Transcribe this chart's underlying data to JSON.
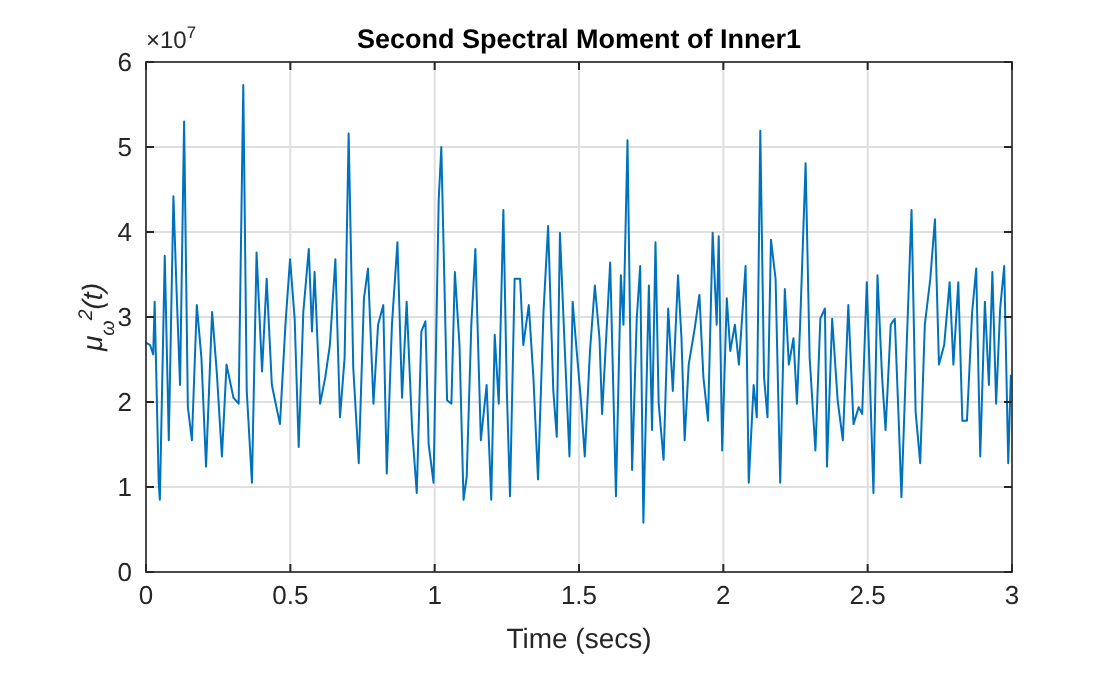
{
  "chart_data": {
    "type": "line",
    "title": "Second Spectral Moment of Inner1",
    "xlabel": "Time (secs)",
    "ylabel": "μ$_{ω}$$^{2}$(t)",
    "annotations": [
      "×10$^{7}$"
    ],
    "xlim": [
      0,
      3
    ],
    "xticks": [
      0,
      0.5,
      1,
      1.5,
      2,
      2.5,
      3
    ],
    "ylim": [
      0,
      6
    ],
    "yticks": [
      0,
      1,
      2,
      3,
      4,
      5,
      6
    ],
    "grid": true,
    "line_style": "solid",
    "series": [
      {
        "color": "#0072bd",
        "x": [
          0,
          0.014,
          0.025,
          0.03,
          0.044,
          0.048,
          0.065,
          0.079,
          0.095,
          0.106,
          0.118,
          0.132,
          0.145,
          0.159,
          0.176,
          0.192,
          0.208,
          0.229,
          0.245,
          0.263,
          0.279,
          0.303,
          0.321,
          0.337,
          0.349,
          0.367,
          0.383,
          0.402,
          0.418,
          0.436,
          0.464,
          0.483,
          0.499,
          0.515,
          0.529,
          0.545,
          0.564,
          0.575,
          0.584,
          0.603,
          0.621,
          0.637,
          0.656,
          0.672,
          0.688,
          0.702,
          0.718,
          0.737,
          0.755,
          0.769,
          0.788,
          0.804,
          0.822,
          0.834,
          0.852,
          0.871,
          0.887,
          0.903,
          0.922,
          0.938,
          0.954,
          0.968,
          0.979,
          0.996,
          1.014,
          1.023,
          1.043,
          1.058,
          1.07,
          1.086,
          1.1,
          1.111,
          1.127,
          1.141,
          1.16,
          1.18,
          1.196,
          1.208,
          1.222,
          1.238,
          1.25,
          1.261,
          1.277,
          1.296,
          1.307,
          1.326,
          1.342,
          1.358,
          1.377,
          1.393,
          1.411,
          1.423,
          1.434,
          1.451,
          1.467,
          1.478,
          1.492,
          1.506,
          1.52,
          1.538,
          1.555,
          1.571,
          1.58,
          1.599,
          1.608,
          1.628,
          1.645,
          1.654,
          1.668,
          1.684,
          1.7,
          1.712,
          1.723,
          1.742,
          1.753,
          1.765,
          1.776,
          1.793,
          1.809,
          1.825,
          1.843,
          1.855,
          1.866,
          1.88,
          1.901,
          1.917,
          1.931,
          1.947,
          1.963,
          1.977,
          1.984,
          1.996,
          2.012,
          2.024,
          2.04,
          2.054,
          2.077,
          2.088,
          2.105,
          2.116,
          2.128,
          2.141,
          2.153,
          2.165,
          2.181,
          2.197,
          2.213,
          2.227,
          2.243,
          2.255,
          2.266,
          2.285,
          2.299,
          2.319,
          2.336,
          2.352,
          2.359,
          2.377,
          2.396,
          2.414,
          2.433,
          2.451,
          2.469,
          2.481,
          2.497,
          2.509,
          2.52,
          2.534,
          2.55,
          2.562,
          2.58,
          2.594,
          2.608,
          2.617,
          2.636,
          2.652,
          2.666,
          2.682,
          2.698,
          2.717,
          2.733,
          2.747,
          2.765,
          2.784,
          2.797,
          2.814,
          2.828,
          2.844,
          2.862,
          2.876,
          2.89,
          2.906,
          2.92,
          2.932,
          2.945,
          2.959,
          2.973,
          2.987,
          2.996
        ],
        "values": [
          2.7,
          2.67,
          2.56,
          3.18,
          1.05,
          0.85,
          3.72,
          1.55,
          4.42,
          3.3,
          2.2,
          5.3,
          1.94,
          1.55,
          3.14,
          2.52,
          1.24,
          3.06,
          2.36,
          1.36,
          2.44,
          2.05,
          1.98,
          5.73,
          2.13,
          1.05,
          3.76,
          2.36,
          3.45,
          2.2,
          1.74,
          2.91,
          3.68,
          2.98,
          1.47,
          3.06,
          3.8,
          2.83,
          3.53,
          1.98,
          2.29,
          2.67,
          3.68,
          1.82,
          2.52,
          5.16,
          2.4,
          1.28,
          3.22,
          3.57,
          1.98,
          2.91,
          3.14,
          1.16,
          2.91,
          3.88,
          2.05,
          3.18,
          1.67,
          0.93,
          2.83,
          2.95,
          1.51,
          1.05,
          4.38,
          5.0,
          2.02,
          1.98,
          3.53,
          2.67,
          0.85,
          1.12,
          2.91,
          3.8,
          1.55,
          2.2,
          0.85,
          2.79,
          1.98,
          4.26,
          2.13,
          0.89,
          3.45,
          3.45,
          2.67,
          3.14,
          2.29,
          1.09,
          3.06,
          4.07,
          2.13,
          1.59,
          3.99,
          2.6,
          1.36,
          3.18,
          2.6,
          2.05,
          1.36,
          2.6,
          3.37,
          2.75,
          1.86,
          3.06,
          3.64,
          0.89,
          3.49,
          2.91,
          5.08,
          1.2,
          2.98,
          3.6,
          0.58,
          3.37,
          1.67,
          3.88,
          1.98,
          1.32,
          3.1,
          2.13,
          3.49,
          2.75,
          1.55,
          2.44,
          2.87,
          3.26,
          2.29,
          1.78,
          3.99,
          2.91,
          3.95,
          1.43,
          3.22,
          2.6,
          2.91,
          2.44,
          3.6,
          1.05,
          2.2,
          1.82,
          5.19,
          2.29,
          1.82,
          3.91,
          3.45,
          1.05,
          3.33,
          2.44,
          2.75,
          1.98,
          2.91,
          4.81,
          2.52,
          1.43,
          2.98,
          3.1,
          1.24,
          2.98,
          2.02,
          1.55,
          3.14,
          1.74,
          1.94,
          1.86,
          3.41,
          2.13,
          0.93,
          3.49,
          2.29,
          1.67,
          2.91,
          2.98,
          1.74,
          0.88,
          2.75,
          4.26,
          1.89,
          1.28,
          2.91,
          3.45,
          4.15,
          2.44,
          2.67,
          3.41,
          2.44,
          3.41,
          1.78,
          1.78,
          3.06,
          3.57,
          1.36,
          3.18,
          2.2,
          3.53,
          1.98,
          3.1,
          3.6,
          1.28,
          2.32
        ]
      }
    ]
  }
}
